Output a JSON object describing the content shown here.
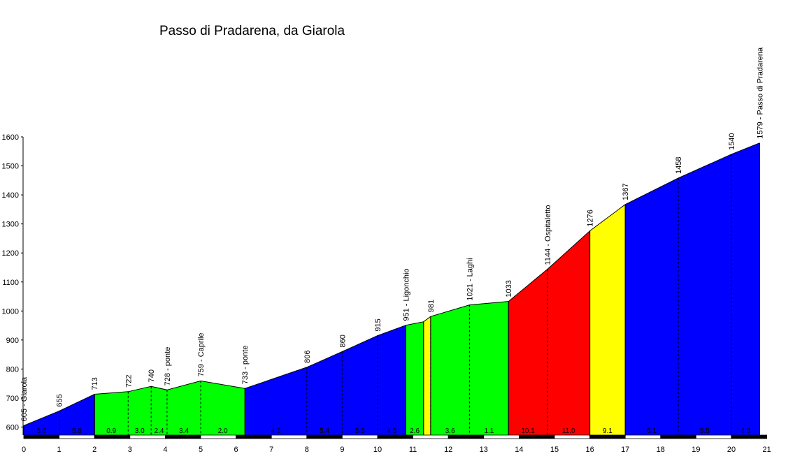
{
  "chart_data": {
    "type": "area",
    "title": "Passo di Pradarena, da Giarola",
    "xlabel": "",
    "ylabel": "",
    "xlim": [
      0,
      21
    ],
    "ylim": [
      570,
      1600
    ],
    "x_ticks": [
      "0",
      "1",
      "2",
      "3",
      "4",
      "5",
      "6",
      "7",
      "8",
      "9",
      "10",
      "11",
      "12",
      "13",
      "14",
      "15",
      "16",
      "17",
      "18",
      "19",
      "20",
      "21"
    ],
    "y_ticks": [
      "600",
      "700",
      "800",
      "900",
      "1000",
      "1100",
      "1200",
      "1300",
      "1400",
      "1500",
      "1600"
    ],
    "colors": {
      "blue": "#0000ff",
      "green": "#00ff00",
      "yellow": "#ffff00",
      "red": "#ff0000"
    },
    "profile": [
      {
        "x": 0.0,
        "y": 605
      },
      {
        "x": 1.0,
        "y": 655
      },
      {
        "x": 2.0,
        "y": 713
      },
      {
        "x": 2.95,
        "y": 722
      },
      {
        "x": 3.6,
        "y": 740
      },
      {
        "x": 4.05,
        "y": 728
      },
      {
        "x": 5.0,
        "y": 759
      },
      {
        "x": 6.25,
        "y": 733
      },
      {
        "x": 8.0,
        "y": 806
      },
      {
        "x": 9.0,
        "y": 860
      },
      {
        "x": 10.0,
        "y": 915
      },
      {
        "x": 10.8,
        "y": 951
      },
      {
        "x": 11.3,
        "y": 963
      },
      {
        "x": 11.5,
        "y": 981
      },
      {
        "x": 12.6,
        "y": 1021
      },
      {
        "x": 13.7,
        "y": 1033
      },
      {
        "x": 14.8,
        "y": 1144
      },
      {
        "x": 16.0,
        "y": 1276
      },
      {
        "x": 17.0,
        "y": 1367
      },
      {
        "x": 18.5,
        "y": 1458
      },
      {
        "x": 20.0,
        "y": 1540
      },
      {
        "x": 20.8,
        "y": 1579
      }
    ],
    "segments": [
      {
        "x0": 0.0,
        "x1": 2.0,
        "color": "blue",
        "grades": [
          {
            "x0": 0.0,
            "x1": 1.0,
            "label": "5.0"
          },
          {
            "x0": 1.0,
            "x1": 2.0,
            "label": "5.8"
          }
        ]
      },
      {
        "x0": 2.0,
        "x1": 6.25,
        "color": "green",
        "grades": [
          {
            "x0": 2.0,
            "x1": 2.95,
            "label": "0.9"
          },
          {
            "x0": 2.95,
            "x1": 3.6,
            "label": "3.0"
          },
          {
            "x0": 3.6,
            "x1": 4.05,
            "label": "2.4"
          },
          {
            "x0": 4.05,
            "x1": 5.0,
            "label": "3.4"
          },
          {
            "x0": 5.0,
            "x1": 6.25,
            "label": "2.0"
          }
        ]
      },
      {
        "x0": 6.25,
        "x1": 10.8,
        "color": "blue",
        "grades": [
          {
            "x0": 6.25,
            "x1": 8.0,
            "label": "4.2"
          },
          {
            "x0": 8.0,
            "x1": 9.0,
            "label": "5.4"
          },
          {
            "x0": 9.0,
            "x1": 10.0,
            "label": "5.5"
          },
          {
            "x0": 10.0,
            "x1": 10.8,
            "label": "4.5"
          }
        ]
      },
      {
        "x0": 10.8,
        "x1": 11.3,
        "color": "green",
        "grades": [
          {
            "x0": 10.8,
            "x1": 11.3,
            "label": "2.6"
          }
        ]
      },
      {
        "x0": 11.3,
        "x1": 11.5,
        "color": "yellow",
        "grades": []
      },
      {
        "x0": 11.5,
        "x1": 13.7,
        "color": "green",
        "grades": [
          {
            "x0": 11.5,
            "x1": 12.6,
            "label": "3.6"
          },
          {
            "x0": 12.6,
            "x1": 13.7,
            "label": "1.1"
          }
        ]
      },
      {
        "x0": 13.7,
        "x1": 16.0,
        "color": "red",
        "grades": [
          {
            "x0": 13.7,
            "x1": 14.8,
            "label": "10.1"
          },
          {
            "x0": 14.8,
            "x1": 16.0,
            "label": "11.0"
          }
        ]
      },
      {
        "x0": 16.0,
        "x1": 17.0,
        "color": "yellow",
        "grades": [
          {
            "x0": 16.0,
            "x1": 17.0,
            "label": "9.1"
          }
        ]
      },
      {
        "x0": 17.0,
        "x1": 20.8,
        "color": "blue",
        "grades": [
          {
            "x0": 17.0,
            "x1": 18.5,
            "label": "6.1"
          },
          {
            "x0": 18.5,
            "x1": 20.0,
            "label": "5.5"
          },
          {
            "x0": 20.0,
            "x1": 20.8,
            "label": "4.9"
          }
        ]
      }
    ],
    "dividers": [
      1.0,
      2.95,
      3.6,
      4.05,
      5.0,
      8.0,
      9.0,
      10.0,
      11.5,
      12.6,
      14.8,
      18.5,
      20.0
    ],
    "annotations": [
      {
        "x": 0.0,
        "y": 605,
        "label": "605 - Giarola"
      },
      {
        "x": 1.0,
        "y": 655,
        "label": "655"
      },
      {
        "x": 2.0,
        "y": 713,
        "label": "713"
      },
      {
        "x": 2.95,
        "y": 722,
        "label": "722"
      },
      {
        "x": 3.6,
        "y": 740,
        "label": "740"
      },
      {
        "x": 4.05,
        "y": 728,
        "label": "728 - ponte"
      },
      {
        "x": 5.0,
        "y": 759,
        "label": "759 - Caprile"
      },
      {
        "x": 6.25,
        "y": 733,
        "label": "733 - ponte"
      },
      {
        "x": 8.0,
        "y": 806,
        "label": "806"
      },
      {
        "x": 9.0,
        "y": 860,
        "label": "860"
      },
      {
        "x": 10.0,
        "y": 915,
        "label": "915"
      },
      {
        "x": 10.8,
        "y": 951,
        "label": "951 - Ligonchio"
      },
      {
        "x": 11.5,
        "y": 981,
        "label": "981"
      },
      {
        "x": 12.6,
        "y": 1021,
        "label": "1021 - Laghi"
      },
      {
        "x": 13.7,
        "y": 1033,
        "label": "1033"
      },
      {
        "x": 14.8,
        "y": 1144,
        "label": "1144 - Ospitaletto"
      },
      {
        "x": 16.0,
        "y": 1276,
        "label": "1276"
      },
      {
        "x": 17.0,
        "y": 1367,
        "label": "1367"
      },
      {
        "x": 18.5,
        "y": 1458,
        "label": "1458"
      },
      {
        "x": 20.0,
        "y": 1540,
        "label": "1540"
      },
      {
        "x": 20.8,
        "y": 1579,
        "label": "1579 - Passo di Pradarena"
      }
    ],
    "grid": false,
    "legend": "none"
  }
}
